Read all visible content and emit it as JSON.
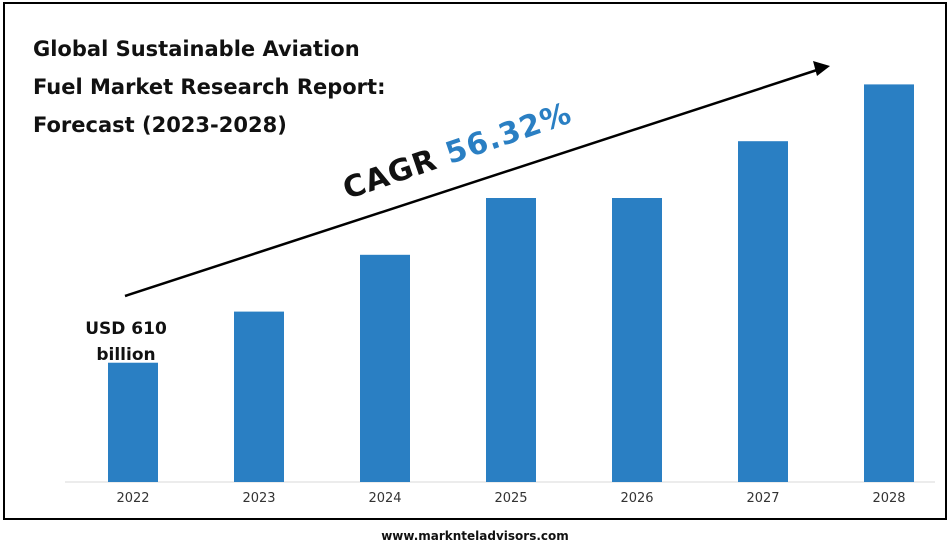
{
  "title": {
    "line1": "Global Sustainable Aviation",
    "line2": "Fuel Market Research Report:",
    "line3": "Forecast (2023-2028)"
  },
  "cagr": {
    "label": "CAGR",
    "value": "56.32%"
  },
  "first_value_label": {
    "line1": "USD 610",
    "line2": "billion"
  },
  "footer": {
    "url": "www.marknteladvisors.com"
  },
  "colors": {
    "bar": "#2a7fc3",
    "cagr_value": "#2a7fc3",
    "axis_text": "#333333"
  },
  "chart_data": {
    "type": "bar",
    "title": "Global Sustainable Aviation Fuel Market Research Report: Forecast (2023-2028)",
    "categories": [
      "2022",
      "2023",
      "2024",
      "2025",
      "2026",
      "2027",
      "2028"
    ],
    "values": [
      2.1,
      3.0,
      4.0,
      5.0,
      5.0,
      6.0,
      7.0
    ],
    "value_scale": "relative (unlabeled axis); 2022 = USD 610 billion",
    "annotations": [
      "USD 610 billion",
      "CAGR 56.32%"
    ],
    "ylim": [
      0,
      7.5
    ],
    "grid": false,
    "legend": "none"
  }
}
